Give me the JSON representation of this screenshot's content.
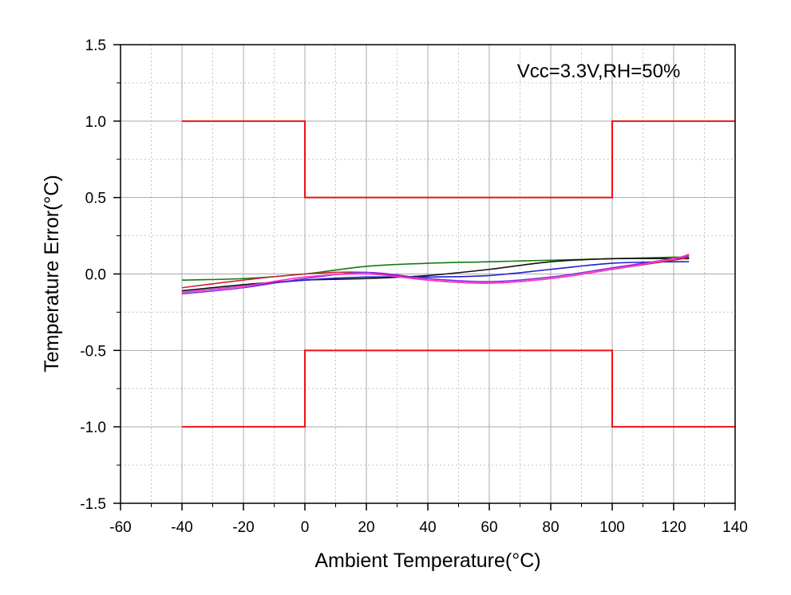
{
  "chart_data": {
    "type": "line",
    "title": "",
    "xlabel": "Ambient Temperature(°C)",
    "ylabel": "Temperature Error(°C)",
    "xlim": [
      -60,
      140
    ],
    "ylim": [
      -1.5,
      1.5
    ],
    "x_ticks": [
      -60,
      -40,
      -20,
      0,
      20,
      40,
      60,
      80,
      100,
      120,
      140
    ],
    "x_tick_labels": [
      "-60",
      "-40",
      "-20",
      "0",
      "20",
      "40",
      "60",
      "80",
      "100",
      "120",
      "140"
    ],
    "y_ticks": [
      -1.5,
      -1.0,
      -0.5,
      0.0,
      0.5,
      1.0,
      1.5
    ],
    "y_tick_labels": [
      "-1.5",
      "-1.0",
      "-0.5",
      "0.0",
      "0.5",
      "1.0",
      "1.5"
    ],
    "grid": true,
    "grid_style": "major solid grey, minor dotted",
    "annotation": "Vcc=3.3V,RH=50%",
    "limit_color": "#ee1111",
    "limits": {
      "upper": {
        "x": [
          -40,
          0,
          0,
          100,
          100,
          140
        ],
        "y": [
          1.0,
          1.0,
          0.5,
          0.5,
          1.0,
          1.0
        ]
      },
      "lower": {
        "x": [
          -40,
          0,
          0,
          100,
          100,
          140
        ],
        "y": [
          -1.0,
          -1.0,
          -0.5,
          -0.5,
          -1.0,
          -1.0
        ]
      }
    },
    "series": [
      {
        "color": "#137a13",
        "x": [
          -40,
          -20,
          0,
          20,
          40,
          60,
          80,
          100,
          120,
          125
        ],
        "y": [
          -0.04,
          -0.03,
          0.0,
          0.05,
          0.07,
          0.08,
          0.09,
          0.1,
          0.11,
          0.11
        ]
      },
      {
        "color": "#111111",
        "x": [
          -40,
          -20,
          0,
          20,
          40,
          60,
          80,
          100,
          120,
          125
        ],
        "y": [
          -0.11,
          -0.07,
          -0.04,
          -0.03,
          -0.01,
          0.03,
          0.08,
          0.1,
          0.1,
          0.1
        ]
      },
      {
        "color": "#1f1fcc",
        "x": [
          -40,
          -20,
          0,
          20,
          40,
          60,
          80,
          100,
          120,
          125
        ],
        "y": [
          -0.12,
          -0.08,
          -0.04,
          -0.02,
          -0.02,
          -0.01,
          0.03,
          0.07,
          0.08,
          0.08
        ]
      },
      {
        "color": "#cc2233",
        "x": [
          -40,
          -20,
          0,
          20,
          40,
          60,
          80,
          100,
          120,
          125
        ],
        "y": [
          -0.09,
          -0.04,
          0.0,
          0.01,
          -0.04,
          -0.06,
          -0.03,
          0.03,
          0.09,
          0.11
        ]
      },
      {
        "color": "#8a2be2",
        "x": [
          -40,
          -20,
          0,
          20,
          40,
          60,
          80,
          100,
          120,
          125
        ],
        "y": [
          -0.13,
          -0.09,
          -0.03,
          0.01,
          -0.03,
          -0.05,
          -0.02,
          0.04,
          0.1,
          0.12
        ]
      },
      {
        "color": "#ff33cc",
        "x": [
          -40,
          -20,
          0,
          20,
          40,
          60,
          80,
          100,
          120,
          125
        ],
        "y": [
          -0.12,
          -0.08,
          -0.02,
          0.0,
          -0.04,
          -0.06,
          -0.03,
          0.03,
          0.1,
          0.13
        ]
      }
    ]
  }
}
